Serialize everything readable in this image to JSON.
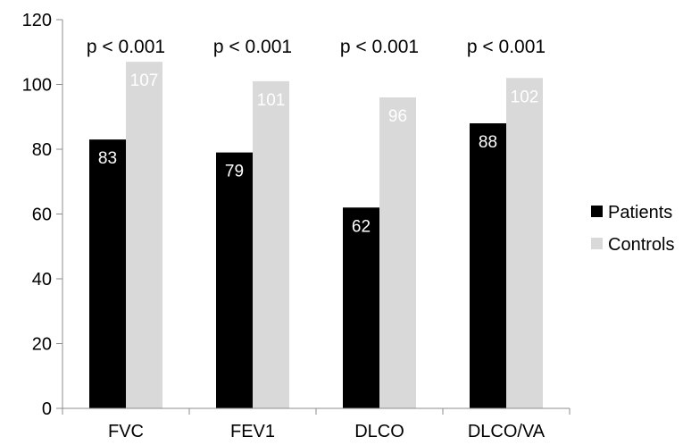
{
  "chart_data": {
    "type": "bar",
    "categories": [
      "FVC",
      "FEV1",
      "DLCO",
      "DLCO/VA"
    ],
    "series": [
      {
        "name": "Patients",
        "values": [
          83,
          79,
          62,
          88
        ],
        "color": "#000000",
        "label_color": "#ffffff"
      },
      {
        "name": "Controls",
        "values": [
          107,
          101,
          96,
          102
        ],
        "color": "#d9d9d9",
        "label_color": "#ffffff"
      }
    ],
    "annotations": [
      "p < 0.001",
      "p < 0.001",
      "p < 0.001",
      "p < 0.001"
    ],
    "ylim": [
      0,
      120
    ],
    "yticks": [
      "0",
      "20",
      "40",
      "60",
      "80",
      "100",
      "120"
    ],
    "grid": false,
    "legend_position": "right"
  }
}
